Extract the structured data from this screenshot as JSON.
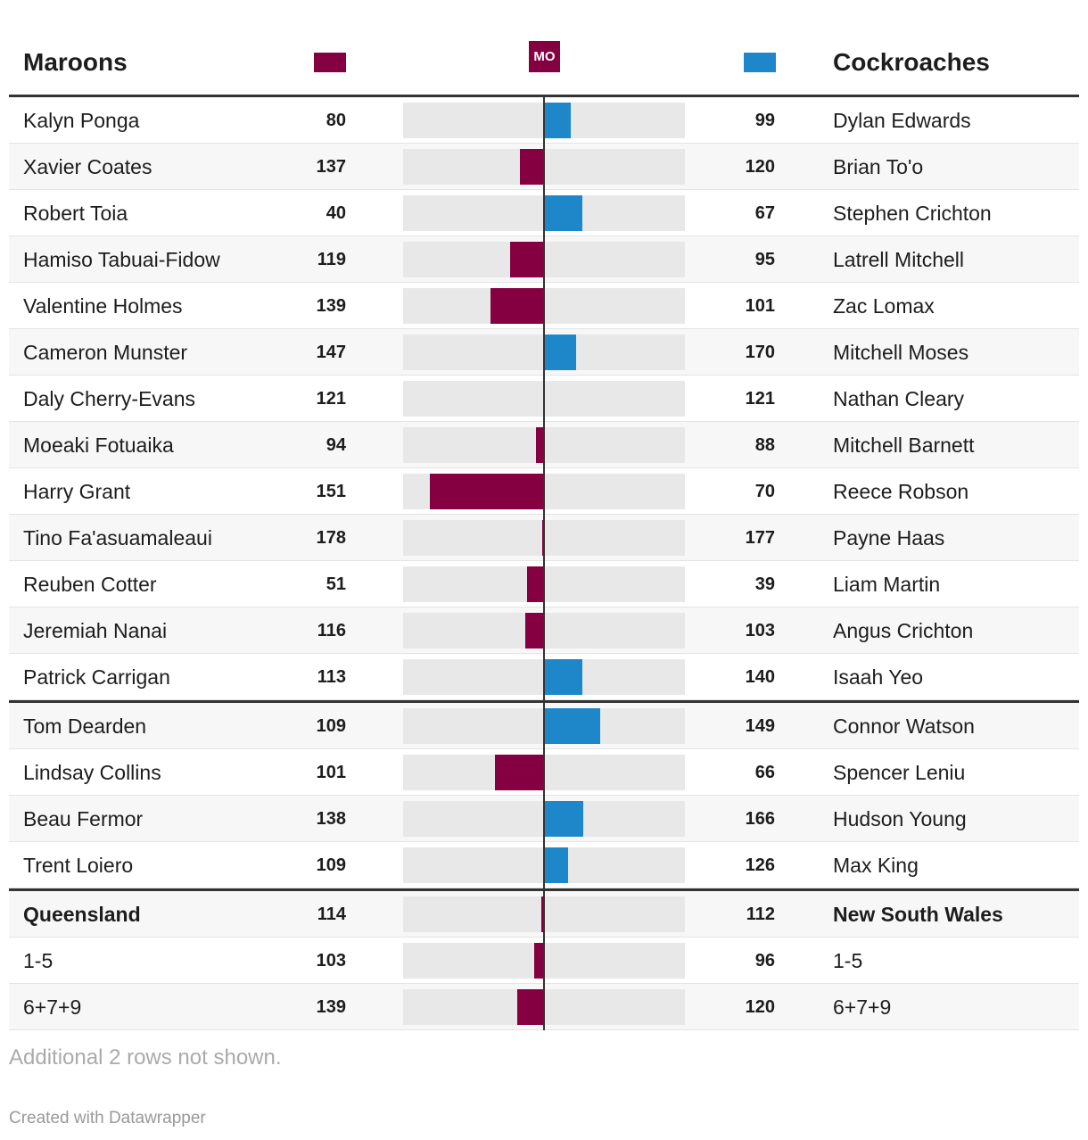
{
  "header": {
    "left_team": "Maroons",
    "logo": "MO",
    "right_team": "Cockroaches"
  },
  "colors": {
    "left": "#850040",
    "right": "#1e87c9"
  },
  "groups": [
    {
      "rows": [
        [
          "Kalyn Ponga",
          80,
          99,
          "Dylan Edwards"
        ],
        [
          "Xavier Coates",
          137,
          120,
          "Brian To'o"
        ],
        [
          "Robert Toia",
          40,
          67,
          "Stephen Crichton"
        ],
        [
          "Hamiso Tabuai-Fidow",
          119,
          95,
          "Latrell Mitchell"
        ],
        [
          "Valentine Holmes",
          139,
          101,
          "Zac Lomax"
        ],
        [
          "Cameron Munster",
          147,
          170,
          "Mitchell Moses"
        ],
        [
          "Daly Cherry-Evans",
          121,
          121,
          "Nathan Cleary"
        ],
        [
          "Moeaki Fotuaika",
          94,
          88,
          "Mitchell Barnett"
        ],
        [
          "Harry Grant",
          151,
          70,
          "Reece Robson"
        ],
        [
          "Tino Fa'asuamaleaui",
          178,
          177,
          "Payne Haas"
        ],
        [
          "Reuben Cotter",
          51,
          39,
          "Liam Martin"
        ],
        [
          "Jeremiah Nanai",
          116,
          103,
          "Angus Crichton"
        ],
        [
          "Patrick Carrigan",
          113,
          140,
          "Isaah Yeo"
        ]
      ]
    },
    {
      "rows": [
        [
          "Tom Dearden",
          109,
          149,
          "Connor Watson"
        ],
        [
          "Lindsay Collins",
          101,
          66,
          "Spencer Leniu"
        ],
        [
          "Beau Fermor",
          138,
          166,
          "Hudson Young"
        ],
        [
          "Trent Loiero",
          109,
          126,
          "Max King"
        ]
      ]
    },
    {
      "rows": [
        [
          "Queensland",
          114,
          112,
          "New South Wales"
        ],
        [
          "1-5",
          103,
          96,
          "1-5"
        ],
        [
          "6+7+9",
          139,
          120,
          "6+7+9"
        ]
      ]
    }
  ],
  "footer": {
    "note": "Additional 2 rows not shown.",
    "credit": "Created with Datawrapper"
  }
}
